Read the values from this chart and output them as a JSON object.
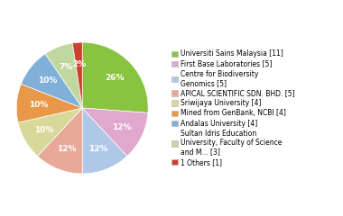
{
  "labels": [
    "Universiti Sains Malaysia [11]",
    "First Base Laboratories [5]",
    "Centre for Biodiversity\nGenomics [5]",
    "APICAL SCIENTIFIC SDN. BHD. [5]",
    "Sriwijaya University [4]",
    "Mined from GenBank, NCBI [4]",
    "Andalas University [4]",
    "Sultan Idris Education\nUniversity, Faculty of Science\nand M... [3]",
    "1 Others [1]"
  ],
  "values": [
    11,
    5,
    5,
    5,
    4,
    4,
    4,
    3,
    1
  ],
  "colors": [
    "#88c440",
    "#e0a8cc",
    "#b0c8e8",
    "#e8a898",
    "#d8d898",
    "#e89848",
    "#80b0d8",
    "#c0d8a0",
    "#cc4030"
  ],
  "figsize": [
    3.8,
    2.4
  ],
  "dpi": 100,
  "legend_fontsize": 5.5,
  "pct_fontsize": 6.5
}
